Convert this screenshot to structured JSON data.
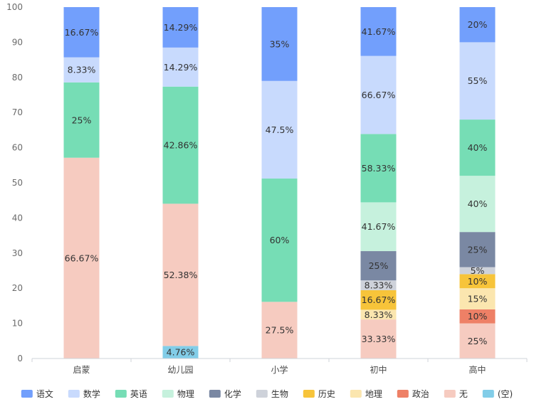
{
  "chart_data": {
    "type": "bar",
    "stacked": true,
    "title": "",
    "xlabel": "",
    "ylabel": "",
    "ylim": [
      0,
      100
    ],
    "yticks": [
      0,
      10,
      20,
      30,
      40,
      50,
      60,
      70,
      80,
      90,
      100
    ],
    "categories": [
      "启蒙",
      "幼儿园",
      "小学",
      "初中",
      "高中"
    ],
    "series": [
      {
        "name": "(空)",
        "color": "#82CDE8",
        "values": [
          0,
          3.57,
          0,
          0,
          0
        ],
        "labels": [
          "",
          "4.76%",
          "",
          "",
          ""
        ]
      },
      {
        "name": "无",
        "color": "#F6CBC0",
        "values": [
          57.14,
          40.48,
          16.13,
          11.11,
          10.0
        ],
        "labels": [
          "66.67%",
          "52.38%",
          "27.5%",
          "33.33%",
          "25%"
        ]
      },
      {
        "name": "政治",
        "color": "#EE8066",
        "values": [
          0,
          0,
          0,
          0,
          4.0
        ],
        "labels": [
          "",
          "",
          "",
          "",
          "10%"
        ]
      },
      {
        "name": "地理",
        "color": "#FBE6AF",
        "values": [
          0,
          0,
          0,
          2.78,
          6.0
        ],
        "labels": [
          "",
          "",
          "",
          "8.33%",
          "15%"
        ]
      },
      {
        "name": "历史",
        "color": "#F7C43A",
        "values": [
          0,
          0,
          0,
          5.56,
          4.0
        ],
        "labels": [
          "",
          "",
          "",
          "16.67%",
          "10%"
        ]
      },
      {
        "name": "生物",
        "color": "#CED2DA",
        "values": [
          0,
          0,
          0,
          2.78,
          2.0
        ],
        "labels": [
          "",
          "",
          "",
          "8.33%",
          "5%"
        ]
      },
      {
        "name": "化学",
        "color": "#7A88A3",
        "values": [
          0,
          0,
          0,
          8.33,
          10.0
        ],
        "labels": [
          "",
          "",
          "",
          "25%",
          "25%"
        ]
      },
      {
        "name": "物理",
        "color": "#C6F1DD",
        "values": [
          0,
          0,
          0,
          13.89,
          16.0
        ],
        "labels": [
          "",
          "",
          "",
          "41.67%",
          "40%"
        ]
      },
      {
        "name": "英语",
        "color": "#76DDB5",
        "values": [
          21.43,
          33.33,
          35.08,
          19.44,
          16.0
        ],
        "labels": [
          "25%",
          "42.86%",
          "60%",
          "58.33%",
          "40%"
        ]
      },
      {
        "name": "数学",
        "color": "#C8DAFD",
        "values": [
          7.14,
          11.11,
          27.78,
          22.22,
          22.0
        ],
        "labels": [
          "8.33%",
          "14.29%",
          "47.5%",
          "66.67%",
          "55%"
        ]
      },
      {
        "name": "语文",
        "color": "#729FFC",
        "values": [
          14.29,
          11.51,
          21.01,
          13.89,
          10.0
        ],
        "labels": [
          "16.67%",
          "14.29%",
          "35%",
          "41.67%",
          "20%"
        ]
      }
    ],
    "legend": {
      "placement": "bottom",
      "entries": [
        "语文",
        "数学",
        "英语",
        "物理",
        "化学",
        "生物",
        "历史",
        "地理",
        "政治",
        "无",
        "(空)"
      ]
    }
  }
}
